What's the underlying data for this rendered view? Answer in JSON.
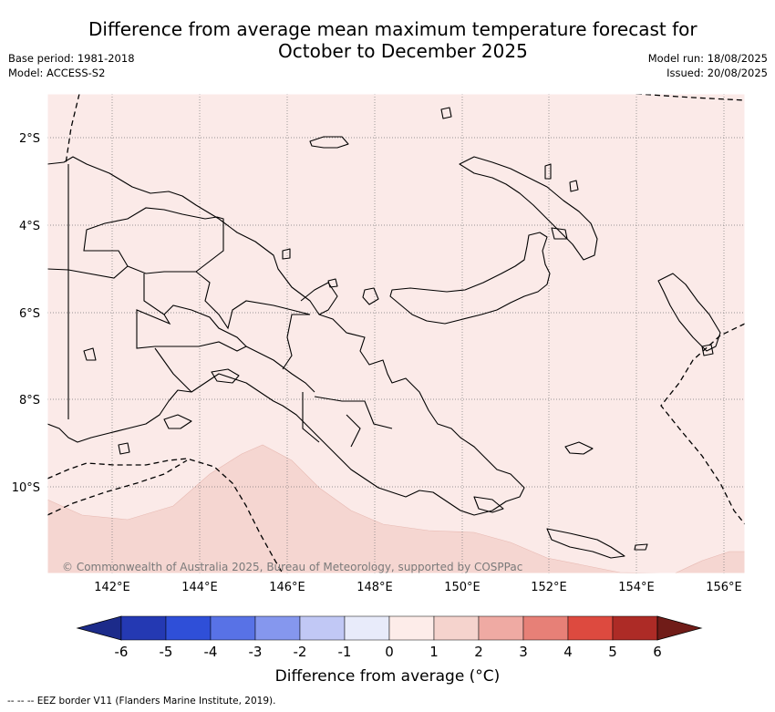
{
  "header": {
    "title_line1": "Difference from average mean maximum temperature forecast for",
    "title_line2": "October to December 2025",
    "base_period": "Base period: 1981-2018",
    "model": "Model: ACCESS-S2",
    "model_run": "Model run: 18/08/2025",
    "issued": "Issued: 20/08/2025"
  },
  "map": {
    "copyright": "© Commonwealth of Australia 2025, Bureau of Meteorology, supported by COSPPac",
    "lon_labels": [
      "142°E",
      "144°E",
      "146°E",
      "148°E",
      "150°E",
      "152°E",
      "154°E",
      "156°E"
    ],
    "lat_labels": [
      "2°S",
      "4°S",
      "6°S",
      "8°S",
      "10°S"
    ],
    "background_color": "#fbeae8",
    "warm_band_color": "#f5d6d1"
  },
  "colorbar": {
    "ticks": [
      "-6",
      "-5",
      "-4",
      "-3",
      "-2",
      "-1",
      "0",
      "1",
      "2",
      "3",
      "4",
      "5",
      "6"
    ],
    "colors": [
      "#1c2b8a",
      "#2439b3",
      "#2f4fd8",
      "#5872e6",
      "#8597ee",
      "#c1c8f5",
      "#e8ebfa",
      "#fdece9",
      "#f5d3cd",
      "#efaaa3",
      "#e78077",
      "#dd4a3f",
      "#ad2b26",
      "#701c18"
    ],
    "label": "Difference from average (°C)"
  },
  "footer": {
    "legend_text": "-- -- -- EEZ border V11 (Flanders Marine Institute, 2019)."
  }
}
